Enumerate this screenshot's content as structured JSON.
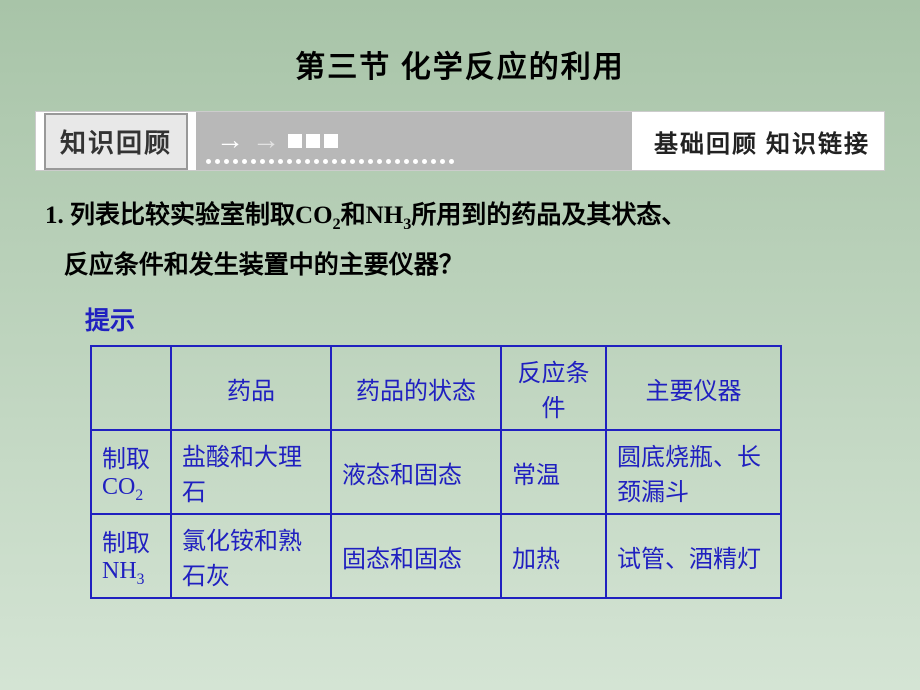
{
  "title": "第三节   化学反应的利用",
  "banner": {
    "left": "知识回顾",
    "right": "基础回顾 知识链接",
    "bg_gray": "#b8b8b8",
    "box_border": "#999999",
    "box_bg": "#e8e8e8"
  },
  "question": {
    "number": "1.",
    "line1_a": "列表比较",
    "line1_b": "实验",
    "line1_c": "室制取CO",
    "line1_sub1": "2",
    "line1_d": "和NH",
    "line1_sub2": "3",
    "line1_e": "所用到的药品及其状态、",
    "line2": "反应条件和发生装置中的主要仪器？"
  },
  "hint": "提示",
  "table": {
    "border_color": "#2020c0",
    "text_color": "#2020c0",
    "headers": [
      "",
      "药品",
      "药品的状态",
      "反应条件",
      "主要仪器"
    ],
    "rows": [
      {
        "label_pre": "制取",
        "label_f": "CO",
        "label_sub": "2",
        "cells": [
          "盐酸和大理石",
          "液态和固态",
          "常温",
          "圆底烧瓶、长颈漏斗"
        ]
      },
      {
        "label_pre": "制取",
        "label_f": "NH",
        "label_sub": "3",
        "cells": [
          "氯化铵和熟石灰",
          "固态和固态",
          "加热",
          "试管、酒精灯"
        ]
      }
    ]
  },
  "colors": {
    "bg_top": "#a8c4a8",
    "bg_bottom": "#d4e4d4",
    "title_color": "#000000",
    "hint_color": "#2020c0"
  }
}
